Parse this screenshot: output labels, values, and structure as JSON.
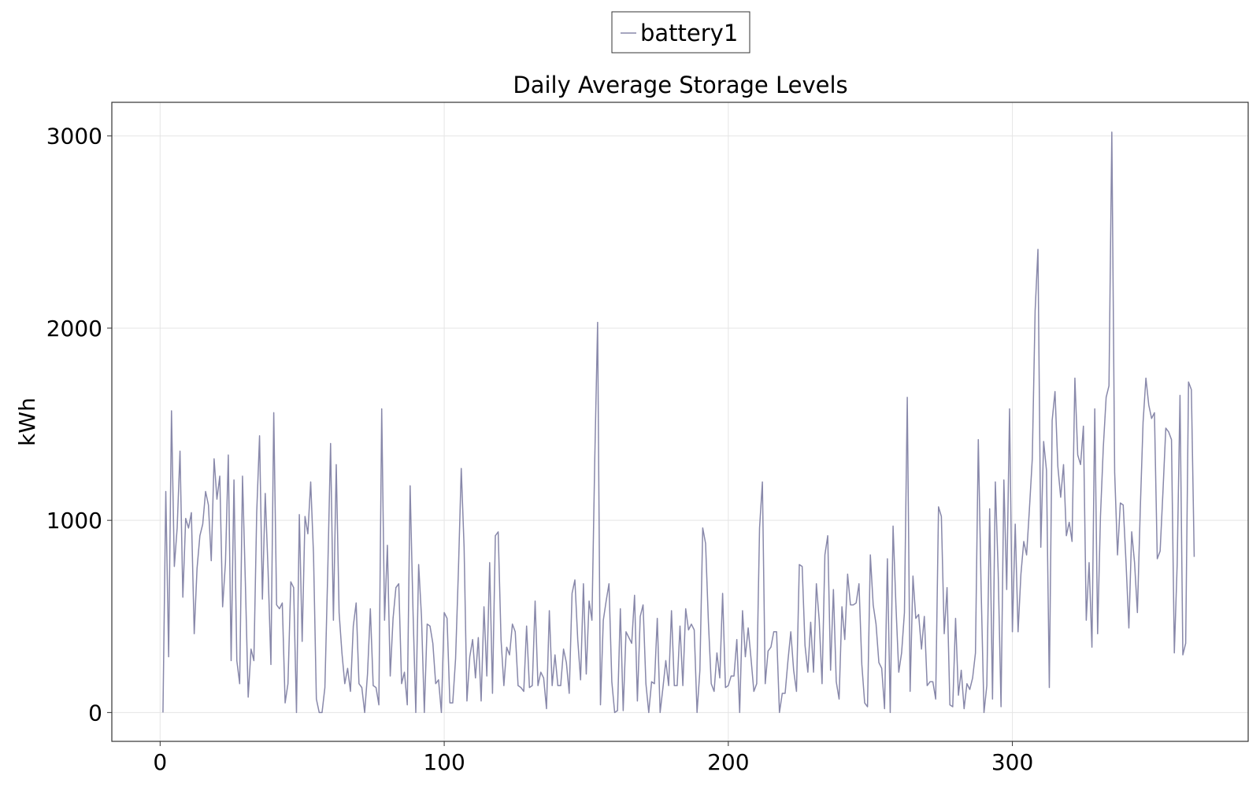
{
  "chart_data": {
    "type": "line",
    "title": "Daily Average Storage Levels",
    "xlabel": "",
    "ylabel": "kWh",
    "xlim": [
      -17,
      383
    ],
    "ylim": [
      -150,
      3175
    ],
    "xticks": [
      0,
      100,
      200,
      300
    ],
    "yticks": [
      0,
      1000,
      2000,
      3000
    ],
    "grid": true,
    "legend_position": "top-center",
    "series": [
      {
        "name": "battery1",
        "color": "#8888aa",
        "x_start": 1,
        "x_step": 1,
        "values": [
          0,
          1150,
          290,
          1570,
          760,
          960,
          1360,
          600,
          1010,
          960,
          1040,
          410,
          750,
          920,
          980,
          1150,
          1080,
          790,
          1320,
          1110,
          1230,
          550,
          780,
          1340,
          270,
          1210,
          270,
          150,
          1230,
          680,
          80,
          330,
          270,
          1040,
          1440,
          590,
          1140,
          740,
          250,
          1560,
          560,
          540,
          570,
          50,
          150,
          680,
          650,
          0,
          1030,
          370,
          1020,
          930,
          1200,
          820,
          70,
          0,
          0,
          130,
          730,
          1400,
          480,
          1290,
          520,
          310,
          150,
          230,
          110,
          450,
          570,
          150,
          130,
          0,
          200,
          540,
          140,
          130,
          40,
          1580,
          480,
          870,
          190,
          490,
          650,
          670,
          150,
          210,
          40,
          1180,
          540,
          0,
          770,
          500,
          0,
          460,
          450,
          360,
          150,
          170,
          0,
          520,
          490,
          50,
          50,
          280,
          740,
          1270,
          860,
          60,
          290,
          380,
          180,
          390,
          60,
          550,
          190,
          780,
          100,
          920,
          940,
          380,
          140,
          340,
          300,
          460,
          420,
          140,
          130,
          110,
          450,
          130,
          140,
          580,
          140,
          210,
          180,
          20,
          530,
          140,
          300,
          140,
          140,
          330,
          260,
          100,
          620,
          690,
          380,
          170,
          670,
          200,
          580,
          480,
          1320,
          2030,
          40,
          480,
          580,
          670,
          160,
          0,
          10,
          540,
          10,
          420,
          390,
          360,
          610,
          60,
          500,
          560,
          150,
          0,
          160,
          150,
          490,
          0,
          130,
          270,
          140,
          530,
          140,
          140,
          450,
          140,
          540,
          430,
          460,
          430,
          0,
          220,
          960,
          880,
          470,
          150,
          110,
          310,
          180,
          620,
          130,
          140,
          190,
          190,
          380,
          0,
          530,
          290,
          440,
          280,
          110,
          150,
          960,
          1200,
          150,
          320,
          340,
          420,
          420,
          0,
          100,
          100,
          270,
          420,
          220,
          110,
          770,
          760,
          350,
          210,
          470,
          210,
          670,
          480,
          150,
          820,
          920,
          220,
          640,
          160,
          70,
          550,
          380,
          720,
          560,
          560,
          570,
          670,
          250,
          50,
          30,
          820,
          560,
          460,
          260,
          230,
          20,
          800,
          0,
          970,
          560,
          210,
          310,
          520,
          1640,
          110,
          710,
          490,
          510,
          330,
          500,
          140,
          160,
          160,
          70,
          1070,
          1020,
          410,
          650,
          40,
          30,
          490,
          90,
          220,
          20,
          150,
          120,
          180,
          310,
          1420,
          640,
          0,
          140,
          1060,
          70,
          1200,
          730,
          30,
          1210,
          640,
          1580,
          420,
          980,
          420,
          720,
          890,
          820,
          1060,
          1320,
          2090,
          2410,
          860,
          1410,
          1260,
          130,
          1520,
          1670,
          1280,
          1120,
          1290,
          920,
          990,
          890,
          1740,
          1340,
          1290,
          1490,
          480,
          780,
          340,
          1580,
          410,
          1020,
          1380,
          1640,
          1700,
          3020,
          1250,
          820,
          1090,
          1080,
          780,
          440,
          940,
          780,
          520,
          1050,
          1510,
          1740,
          1600,
          1530,
          1560,
          800,
          840,
          1150,
          1480,
          1460,
          1420,
          310,
          770,
          1650,
          300,
          360,
          1720,
          1680,
          810
        ]
      }
    ]
  }
}
